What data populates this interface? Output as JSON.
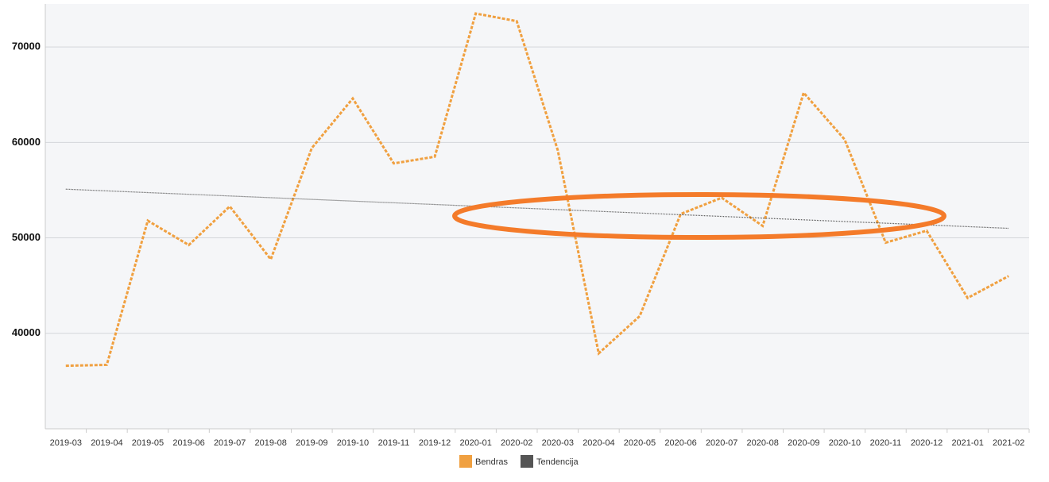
{
  "chart_data": {
    "type": "line",
    "categories": [
      "2019-03",
      "2019-04",
      "2019-05",
      "2019-06",
      "2019-07",
      "2019-08",
      "2019-09",
      "2019-10",
      "2019-11",
      "2019-12",
      "2020-01",
      "2020-02",
      "2020-03",
      "2020-04",
      "2020-05",
      "2020-06",
      "2020-07",
      "2020-08",
      "2020-09",
      "2020-10",
      "2020-11",
      "2020-12",
      "2021-01",
      "2021-02"
    ],
    "series": [
      {
        "name": "Bendras",
        "color": "#f0a040",
        "values": [
          36600,
          36700,
          51800,
          49250,
          53300,
          47750,
          59400,
          64600,
          57800,
          58500,
          73500,
          72700,
          59200,
          37900,
          41800,
          52500,
          54200,
          51250,
          65200,
          60300,
          49500,
          50750,
          43700,
          46000
        ]
      },
      {
        "name": "Tendencija",
        "color": "#555555",
        "values": [
          55100,
          54922,
          54743,
          54565,
          54387,
          54209,
          54030,
          53852,
          53674,
          53496,
          53317,
          53139,
          52961,
          52783,
          52604,
          52426,
          52248,
          52070,
          51891,
          51713,
          51535,
          51357,
          51178,
          51000
        ]
      }
    ],
    "ylim": [
      30000,
      74500
    ],
    "yticks": [
      40000,
      50000,
      60000,
      70000
    ],
    "grid": true
  }
}
